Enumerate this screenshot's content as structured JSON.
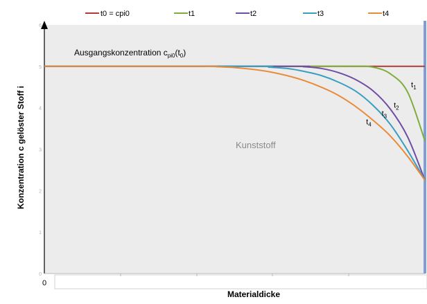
{
  "chart_data": {
    "type": "line",
    "title": "",
    "xlabel": "Materialdicke",
    "ylabel": "Konzentration c gelöster Stoff i",
    "x_tick_labels": [
      "0"
    ],
    "y_tick_labels": [
      "0",
      "1",
      "2",
      "3",
      "4",
      "5",
      "6"
    ],
    "xlim": [
      0,
      11
    ],
    "ylim": [
      0,
      6
    ],
    "grid": false,
    "legend": "top",
    "background_color": "#ececec",
    "boundary_line_color": "#7f9ed4",
    "series": [
      {
        "name": "t0 = cpi0",
        "color": "#b03a3a",
        "x": [
          0,
          11
        ],
        "y": [
          5,
          5
        ]
      },
      {
        "name": "t1",
        "color": "#7fad3c",
        "x": [
          0,
          8.5,
          9,
          9.5,
          10,
          10.5,
          11
        ],
        "y": [
          5,
          5,
          5,
          4.98,
          4.82,
          4.38,
          3.2
        ]
      },
      {
        "name": "t2",
        "color": "#6f4da3",
        "x": [
          0,
          7,
          7.5,
          8,
          8.5,
          9,
          9.5,
          10,
          10.5,
          11
        ],
        "y": [
          5,
          5,
          4.99,
          4.95,
          4.85,
          4.68,
          4.41,
          3.97,
          3.3,
          2.25
        ]
      },
      {
        "name": "t3",
        "color": "#3a9ec1",
        "x": [
          0,
          6,
          6.5,
          7,
          7.5,
          8,
          8.5,
          9,
          9.5,
          10,
          10.5,
          11
        ],
        "y": [
          5,
          5,
          4.98,
          4.95,
          4.88,
          4.78,
          4.62,
          4.4,
          4.06,
          3.6,
          2.97,
          2.25
        ]
      },
      {
        "name": "t4",
        "color": "#e98b3a",
        "x": [
          0,
          4.5,
          5,
          5.5,
          6,
          6.5,
          7,
          7.5,
          8,
          8.5,
          9,
          9.5,
          10,
          10.5,
          11
        ],
        "y": [
          5,
          5,
          4.99,
          4.97,
          4.93,
          4.87,
          4.78,
          4.66,
          4.5,
          4.3,
          4.03,
          3.7,
          3.32,
          2.83,
          2.25
        ]
      }
    ],
    "annotations": {
      "initial_text": "Ausgangskonzentration c",
      "initial_sub": "pi0",
      "initial_tail_open": "(t",
      "initial_tail_sub": "0",
      "initial_tail_close": ")",
      "region": "Kunststoff",
      "curve_labels": [
        {
          "base": "t",
          "sub": "1",
          "x": 10.6,
          "y": 4.5
        },
        {
          "base": "t",
          "sub": "2",
          "x": 10.1,
          "y": 4.0
        },
        {
          "base": "t",
          "sub": "3",
          "x": 9.75,
          "y": 3.8
        },
        {
          "base": "t",
          "sub": "4",
          "x": 9.3,
          "y": 3.6
        }
      ]
    }
  }
}
